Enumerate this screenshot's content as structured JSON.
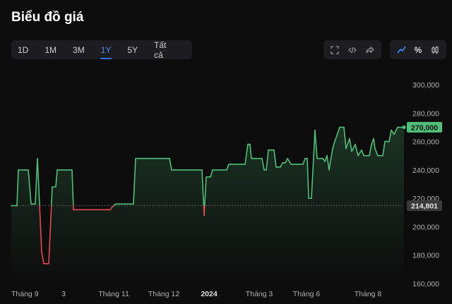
{
  "page": {
    "title": "Biểu đồ giá"
  },
  "range_tabs": [
    {
      "label": "1D",
      "active": false
    },
    {
      "label": "1M",
      "active": false
    },
    {
      "label": "3M",
      "active": false
    },
    {
      "label": "1Y",
      "active": true
    },
    {
      "label": "5Y",
      "active": false
    },
    {
      "label": "Tất cả",
      "active": false
    }
  ],
  "tools": {
    "expand": "expand-icon",
    "embed": "code-icon",
    "share": "share-icon"
  },
  "chart_types": {
    "line": "line-chart-icon",
    "percent": "%",
    "candles": "candlestick-icon"
  },
  "colors": {
    "up": "#4fbe79",
    "down": "#e5484d",
    "accent": "#2f6ee6",
    "current_badge": "#4fbe79",
    "baseline_badge": "#3a3a3a"
  },
  "chart_data": {
    "type": "line",
    "title": "",
    "xlabel": "",
    "ylabel": "",
    "ylim": [
      160000,
      300000
    ],
    "y_ticks": [
      160000,
      180000,
      200000,
      220000,
      240000,
      260000,
      280000,
      300000
    ],
    "y_tick_labels": [
      "160,000",
      "180,000",
      "200,000",
      "220,000",
      "240,000",
      "260,000",
      "280,000",
      "300,000"
    ],
    "x_ticks": [
      {
        "t": 0,
        "label": "Tháng 9",
        "bold": false
      },
      {
        "t": 74,
        "label": "3",
        "bold": false
      },
      {
        "t": 145,
        "label": "Tháng 11",
        "bold": false
      },
      {
        "t": 216,
        "label": "Tháng 12",
        "bold": false
      },
      {
        "t": 280,
        "label": "2024",
        "bold": true
      },
      {
        "t": 351,
        "label": "Tháng 3",
        "bold": false
      },
      {
        "t": 418,
        "label": "Tháng 6",
        "bold": false
      },
      {
        "t": 505,
        "label": "Tháng 8",
        "bold": false
      }
    ],
    "baseline": {
      "value": 214801,
      "label": "214,801"
    },
    "current": {
      "value": 270000,
      "label": "270,000"
    },
    "series": [
      {
        "points": [
          [
            0,
            214801
          ],
          [
            8,
            214801
          ],
          [
            10,
            240000
          ],
          [
            24,
            240000
          ],
          [
            28,
            216000
          ],
          [
            34,
            216000
          ],
          [
            37,
            248000
          ],
          [
            40,
            216000
          ],
          [
            43,
            182000
          ],
          [
            46,
            174000
          ],
          [
            53,
            174000
          ],
          [
            58,
            228000
          ],
          [
            63,
            228000
          ],
          [
            65,
            240000
          ],
          [
            86,
            240000
          ],
          [
            88,
            212000
          ],
          [
            106,
            212000
          ],
          [
            140,
            212000
          ],
          [
            143,
            214000
          ],
          [
            148,
            216000
          ],
          [
            173,
            216000
          ],
          [
            176,
            248000
          ],
          [
            224,
            248000
          ],
          [
            227,
            240000
          ],
          [
            270,
            240000
          ],
          [
            273,
            208000
          ],
          [
            276,
            235000
          ],
          [
            282,
            235000
          ],
          [
            285,
            240000
          ],
          [
            305,
            240000
          ],
          [
            308,
            244000
          ],
          [
            331,
            244000
          ],
          [
            335,
            258000
          ],
          [
            338,
            258000
          ],
          [
            340,
            248000
          ],
          [
            355,
            248000
          ],
          [
            358,
            240000
          ],
          [
            361,
            240000
          ],
          [
            364,
            254000
          ],
          [
            372,
            254000
          ],
          [
            375,
            242000
          ],
          [
            381,
            242000
          ],
          [
            384,
            245000
          ],
          [
            388,
            245000
          ],
          [
            391,
            248000
          ],
          [
            396,
            244000
          ],
          [
            413,
            244000
          ],
          [
            416,
            248000
          ],
          [
            419,
            248000
          ],
          [
            421,
            220000
          ],
          [
            425,
            220000
          ],
          [
            430,
            268000
          ],
          [
            433,
            248000
          ],
          [
            441,
            248000
          ],
          [
            444,
            246000
          ],
          [
            447,
            250000
          ],
          [
            450,
            240000
          ],
          [
            455,
            255000
          ],
          [
            458,
            260000
          ],
          [
            465,
            270000
          ],
          [
            471,
            270000
          ],
          [
            474,
            255000
          ],
          [
            479,
            262000
          ],
          [
            482,
            253000
          ],
          [
            487,
            258000
          ],
          [
            491,
            250000
          ],
          [
            496,
            254000
          ],
          [
            499,
            250000
          ],
          [
            507,
            250000
          ],
          [
            510,
            258000
          ],
          [
            513,
            262000
          ],
          [
            515,
            255000
          ],
          [
            519,
            250000
          ],
          [
            526,
            250000
          ],
          [
            529,
            260000
          ],
          [
            535,
            260000
          ],
          [
            538,
            268000
          ],
          [
            542,
            265000
          ],
          [
            547,
            270000
          ],
          [
            556,
            270000
          ]
        ]
      }
    ]
  }
}
